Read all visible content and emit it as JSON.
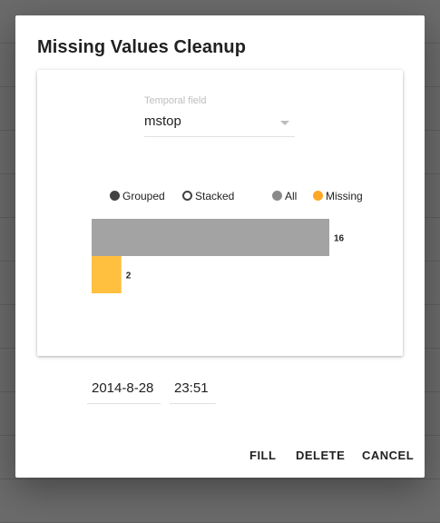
{
  "dialog": {
    "title": "Missing Values Cleanup"
  },
  "temporal_field": {
    "label": "Temporal field",
    "value": "mstop"
  },
  "legend": {
    "mode_options": [
      {
        "label": "Grouped",
        "selected": true
      },
      {
        "label": "Stacked",
        "selected": false
      }
    ],
    "series": [
      {
        "label": "All",
        "color": "#8a8a8a"
      },
      {
        "label": "Missing",
        "color": "#ffa726"
      }
    ]
  },
  "chart_data": {
    "type": "bar",
    "orientation": "horizontal",
    "series": [
      {
        "name": "All",
        "values": [
          16
        ],
        "color": "#a3a3a3"
      },
      {
        "name": "Missing",
        "values": [
          2
        ],
        "color": "#ffbf3f"
      }
    ],
    "xlim": [
      0,
      16
    ]
  },
  "fill_inputs": {
    "date": "2014-8-28",
    "time": "23:51"
  },
  "actions": {
    "fill": "FILL",
    "delete": "DELETE",
    "cancel": "CANCEL"
  }
}
